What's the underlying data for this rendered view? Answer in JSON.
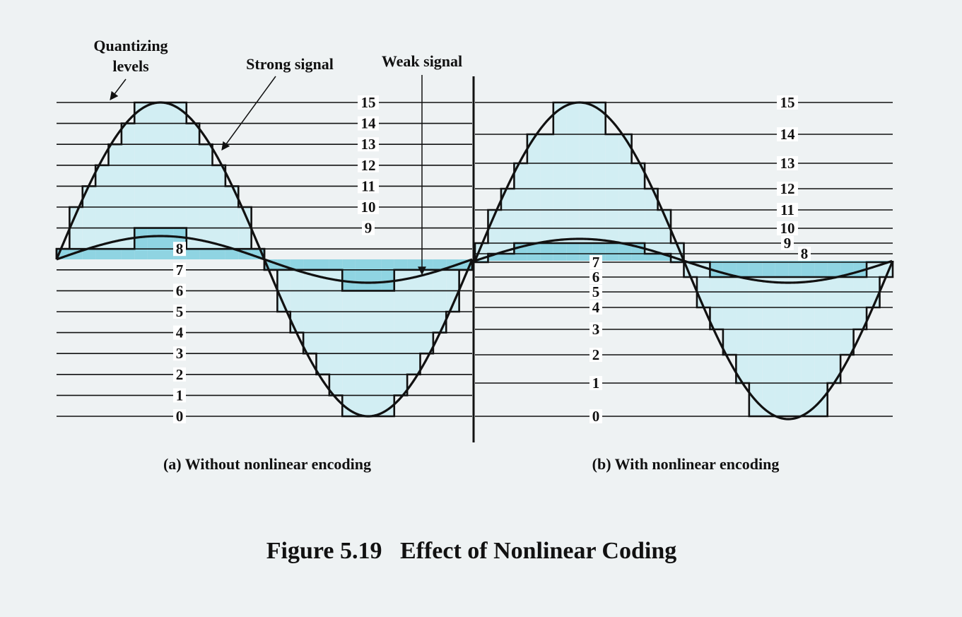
{
  "figure": {
    "title": "Figure 5.19   Effect of Nonlinear Coding",
    "annotations": {
      "quantizing_line1": "Quantizing",
      "quantizing_line2": "levels",
      "strong_signal": "Strong signal",
      "weak_signal": "Weak signal"
    },
    "panel_a": {
      "caption": "(a) Without nonlinear encoding",
      "levels": [
        "0",
        "1",
        "2",
        "3",
        "4",
        "5",
        "6",
        "7",
        "8",
        "9",
        "10",
        "11",
        "12",
        "13",
        "14",
        "15"
      ]
    },
    "panel_b": {
      "caption": "(b) With nonlinear encoding",
      "levels": [
        "0",
        "1",
        "2",
        "3",
        "4",
        "5",
        "6",
        "7",
        "8",
        "9",
        "10",
        "11",
        "12",
        "13",
        "14",
        "15"
      ]
    }
  },
  "colors": {
    "background": "#eef2f3",
    "strong_fill": "#d2eef3",
    "weak_fill": "#8fd4e2",
    "ink": "#111111"
  },
  "chart_data": {
    "type": "diagram",
    "title": "Figure 5.19   Effect of Nonlinear Coding",
    "panels": [
      {
        "name": "(a) Without nonlinear encoding",
        "levels": [
          0,
          1,
          2,
          3,
          4,
          5,
          6,
          7,
          8,
          9,
          10,
          11,
          12,
          13,
          14,
          15
        ],
        "spacing": "uniform",
        "signals": [
          {
            "name": "Strong signal",
            "range": [
              0,
              15
            ]
          },
          {
            "name": "Weak signal",
            "range": [
              6,
              9
            ]
          }
        ]
      },
      {
        "name": "(b) With nonlinear encoding",
        "levels": [
          0,
          1,
          2,
          3,
          4,
          5,
          6,
          7,
          8,
          9,
          10,
          11,
          12,
          13,
          14,
          15
        ],
        "spacing": "nonlinear (compressed near center)",
        "signals": [
          {
            "name": "Strong signal",
            "range": [
              0,
              15
            ]
          },
          {
            "name": "Weak signal",
            "range": [
              5,
              10
            ]
          }
        ]
      }
    ]
  }
}
